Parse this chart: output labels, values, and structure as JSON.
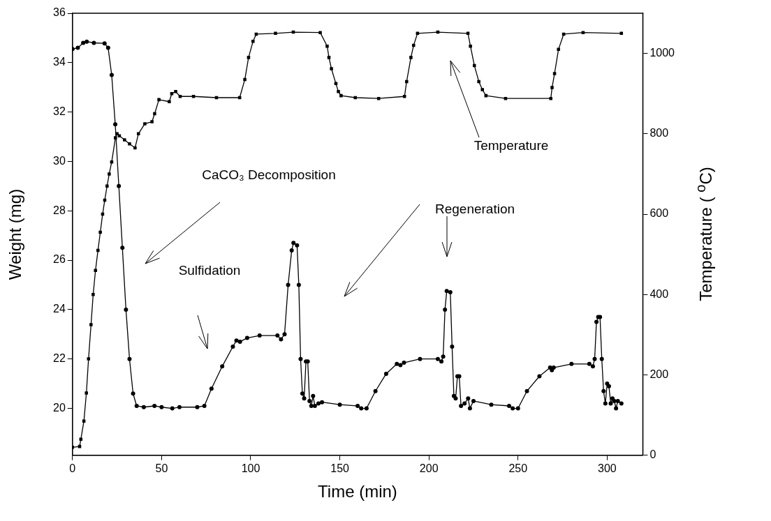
{
  "chart_data": {
    "type": "line",
    "xlabel": "Time (min)",
    "ylabel": "Weight (mg)",
    "y2label": "Temperature ( $^{o}$C)",
    "xlim": [
      0,
      320
    ],
    "xticks": [
      0,
      50,
      100,
      150,
      200,
      250,
      300
    ],
    "ylim": [
      18.1,
      36
    ],
    "yticks": [
      20,
      22,
      24,
      26,
      28,
      30,
      32,
      34,
      36
    ],
    "y2lim": [
      0,
      1100
    ],
    "y2ticks": [
      0,
      200,
      400,
      600,
      800,
      1000
    ],
    "grid": false,
    "legend": false,
    "line_style": "solid",
    "series": [
      {
        "color": "#000000",
        "marker": "circle",
        "axis": "y",
        "x": [
          0,
          3,
          6,
          8,
          12,
          18,
          20,
          22,
          24,
          26,
          28,
          30,
          32,
          34,
          36,
          40,
          46,
          50,
          56,
          60,
          70,
          74,
          78,
          84,
          90,
          92,
          94,
          98,
          105,
          115,
          117,
          119,
          121,
          123,
          124,
          126,
          127,
          128,
          129,
          130,
          131,
          132,
          133,
          134,
          135,
          136,
          138,
          140,
          150,
          160,
          162,
          165,
          170,
          176,
          182,
          184,
          186,
          195,
          205,
          207,
          208,
          209,
          210,
          212,
          213,
          214,
          215,
          216,
          217,
          218,
          220,
          222,
          223,
          225,
          235,
          245,
          247,
          250,
          255,
          262,
          268,
          269,
          270,
          280,
          290,
          292,
          293,
          294,
          295,
          296,
          297,
          298,
          299,
          300,
          301,
          302,
          303,
          304,
          305,
          306,
          308
        ],
        "values": [
          34.55,
          34.6,
          34.8,
          34.85,
          34.8,
          34.78,
          34.6,
          33.5,
          31.5,
          29,
          26.5,
          24,
          22,
          20.6,
          20.1,
          20.05,
          20.1,
          20.05,
          20,
          20.05,
          20.05,
          20.1,
          20.8,
          21.7,
          22.5,
          22.75,
          22.7,
          22.85,
          22.95,
          22.95,
          22.8,
          23,
          25,
          26.4,
          26.7,
          26.6,
          25,
          22,
          20.6,
          20.4,
          21.9,
          21.9,
          20.3,
          20.1,
          20.5,
          20.1,
          20.2,
          20.25,
          20.15,
          20.1,
          20,
          20,
          20.7,
          21.4,
          21.8,
          21.75,
          21.85,
          22,
          22,
          21.9,
          22.1,
          24,
          24.75,
          24.7,
          22.5,
          20.5,
          20.4,
          21.3,
          21.3,
          20.1,
          20.2,
          20.4,
          20,
          20.3,
          20.15,
          20.1,
          20,
          20,
          20.7,
          21.3,
          21.65,
          21.55,
          21.65,
          21.8,
          21.8,
          21.7,
          22,
          23.5,
          23.7,
          23.7,
          22,
          20.7,
          20.2,
          21,
          20.9,
          20.2,
          20.4,
          20.3,
          20,
          20.3,
          20.2
        ]
      },
      {
        "color": "#000000",
        "marker": "square",
        "axis": "y2",
        "x": [
          0,
          4,
          4.7,
          6.4,
          7.8,
          9,
          10.4,
          11.6,
          12.9,
          14.3,
          15.6,
          16.9,
          18.1,
          19.4,
          20.6,
          22,
          24.1,
          25,
          26.3,
          29.2,
          32,
          35.1,
          37,
          40.6,
          44.6,
          46.1,
          48.5,
          54.3,
          55.7,
          57.9,
          60.4,
          67.9,
          80.8,
          93.8,
          96.7,
          98.8,
          101.3,
          103.1,
          113.9,
          123.9,
          139,
          142.9,
          143.9,
          145.3,
          147.8,
          149.2,
          150.7,
          158.7,
          171.8,
          186.3,
          187.5,
          189.9,
          191.4,
          193.6,
          205,
          221.9,
          223.3,
          225.5,
          228,
          230,
          232,
          243,
          268.4,
          269.1,
          270.5,
          272.7,
          275.6,
          286.5,
          308
        ],
        "values": [
          20,
          22,
          40,
          85,
          155,
          240,
          325,
          400,
          460,
          510,
          555,
          600,
          635,
          670,
          700,
          730,
          790,
          800,
          795,
          785,
          775,
          765,
          800,
          825,
          830,
          850,
          885,
          880,
          900,
          905,
          893,
          893,
          890,
          890,
          935,
          990,
          1030,
          1048,
          1050,
          1053,
          1052,
          1018,
          990,
          962,
          925,
          905,
          895,
          890,
          888,
          893,
          930,
          990,
          1020,
          1050,
          1053,
          1050,
          1018,
          970,
          930,
          910,
          895,
          888,
          888,
          915,
          950,
          1010,
          1048,
          1052,
          1050
        ]
      }
    ],
    "annotations": [
      "CaCO₃ Decomposition",
      "Sulfidation",
      "Regeneration",
      "Temperature"
    ]
  }
}
